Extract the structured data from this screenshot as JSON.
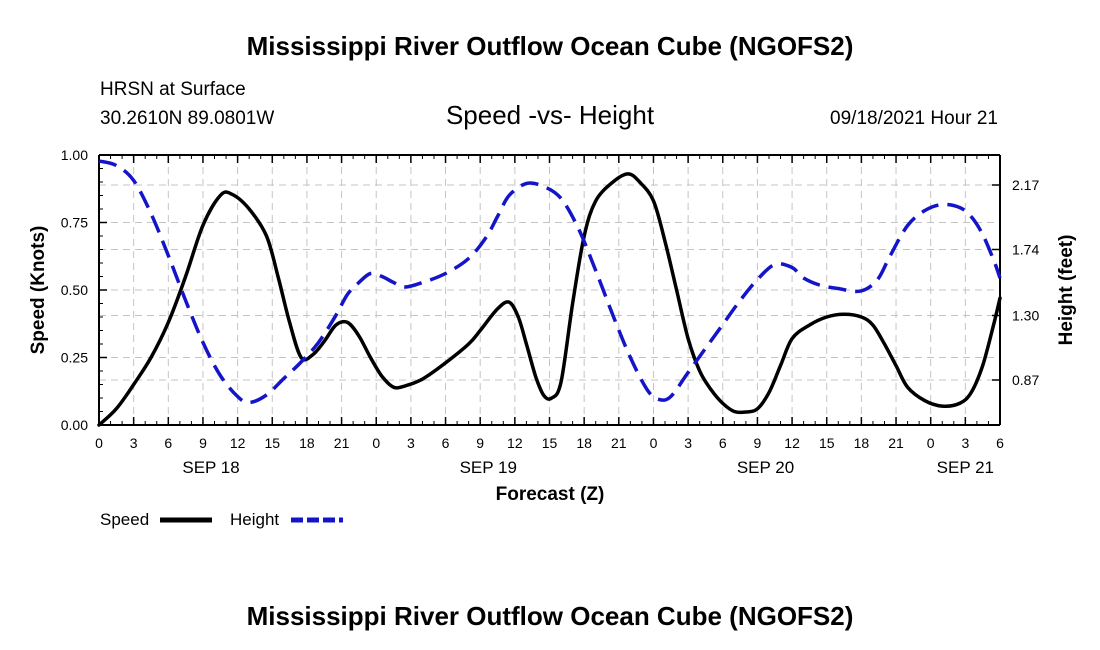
{
  "chart_data": {
    "type": "line",
    "title": "Mississippi River Outflow Ocean Cube (NGOFS2)",
    "footer_title": "Mississippi River Outflow Ocean Cube (NGOFS2)",
    "station": "HRSN at Surface",
    "location": "30.2610N  89.0801W",
    "subtitle": "Speed -vs- Height",
    "timestamp": "09/18/2021 Hour 21",
    "xlabel": "Forecast (Z)",
    "ylabel_left": "Speed (Knots)",
    "ylabel_right": "Height (feet)",
    "xlim": [
      0,
      78
    ],
    "ylim_left": [
      0,
      1.0
    ],
    "ylim_right": [
      0.57,
      2.37
    ],
    "x_tick_step": 3,
    "x_tick_labels": [
      "0",
      "3",
      "6",
      "9",
      "12",
      "15",
      "18",
      "21",
      "0",
      "3",
      "6",
      "9",
      "12",
      "15",
      "18",
      "21",
      "0",
      "3",
      "6",
      "9",
      "12",
      "15",
      "18",
      "21",
      "0",
      "3",
      "6"
    ],
    "y_left_ticks": [
      0.0,
      0.25,
      0.5,
      0.75,
      1.0
    ],
    "y_left_tick_labels": [
      "0.00",
      "0.25",
      "0.50",
      "0.75",
      "1.00"
    ],
    "y_right_ticks": [
      0.87,
      1.3,
      1.74,
      2.17
    ],
    "y_right_tick_labels": [
      "0.87",
      "1.30",
      "1.74",
      "2.17"
    ],
    "date_labels": [
      {
        "label": "SEP 18",
        "x": 9.7
      },
      {
        "label": "SEP 19",
        "x": 33.7
      },
      {
        "label": "SEP 20",
        "x": 57.7
      },
      {
        "label": "SEP 21",
        "x": 75
      }
    ],
    "grid": true,
    "legend": {
      "position": "bottom-left",
      "speed_label": "Speed",
      "height_label": "Height"
    },
    "series": [
      {
        "name": "Speed",
        "axis": "left",
        "color": "#000000",
        "style": "solid",
        "points": [
          [
            0,
            0.0
          ],
          [
            1.5,
            0.06
          ],
          [
            3,
            0.15
          ],
          [
            4.5,
            0.25
          ],
          [
            6,
            0.38
          ],
          [
            7.5,
            0.55
          ],
          [
            9,
            0.74
          ],
          [
            10.5,
            0.85
          ],
          [
            11.5,
            0.855
          ],
          [
            13,
            0.8
          ],
          [
            14.5,
            0.7
          ],
          [
            15.5,
            0.55
          ],
          [
            16.5,
            0.38
          ],
          [
            17.5,
            0.25
          ],
          [
            18.5,
            0.26
          ],
          [
            19.5,
            0.31
          ],
          [
            20.5,
            0.37
          ],
          [
            21.5,
            0.38
          ],
          [
            22.5,
            0.33
          ],
          [
            23.5,
            0.25
          ],
          [
            24.5,
            0.18
          ],
          [
            25.5,
            0.14
          ],
          [
            26.5,
            0.145
          ],
          [
            28,
            0.17
          ],
          [
            30,
            0.23
          ],
          [
            32,
            0.3
          ],
          [
            33,
            0.35
          ],
          [
            34.5,
            0.43
          ],
          [
            35.5,
            0.455
          ],
          [
            36.3,
            0.4
          ],
          [
            37,
            0.3
          ],
          [
            37.8,
            0.18
          ],
          [
            38.5,
            0.11
          ],
          [
            39.2,
            0.1
          ],
          [
            40,
            0.16
          ],
          [
            41,
            0.45
          ],
          [
            42,
            0.7
          ],
          [
            43,
            0.83
          ],
          [
            44.5,
            0.9
          ],
          [
            45.8,
            0.93
          ],
          [
            46.8,
            0.9
          ],
          [
            48,
            0.83
          ],
          [
            49,
            0.68
          ],
          [
            50,
            0.5
          ],
          [
            51,
            0.32
          ],
          [
            52,
            0.2
          ],
          [
            53,
            0.13
          ],
          [
            54,
            0.08
          ],
          [
            55,
            0.05
          ],
          [
            56,
            0.048
          ],
          [
            57,
            0.06
          ],
          [
            58,
            0.12
          ],
          [
            59,
            0.22
          ],
          [
            60,
            0.32
          ],
          [
            61.5,
            0.37
          ],
          [
            63,
            0.4
          ],
          [
            64.5,
            0.41
          ],
          [
            66,
            0.4
          ],
          [
            67,
            0.37
          ],
          [
            68,
            0.3
          ],
          [
            69,
            0.22
          ],
          [
            70,
            0.14
          ],
          [
            71.5,
            0.09
          ],
          [
            73,
            0.07
          ],
          [
            74.5,
            0.08
          ],
          [
            75.5,
            0.12
          ],
          [
            76.5,
            0.22
          ],
          [
            77.5,
            0.38
          ],
          [
            78,
            0.47
          ]
        ]
      },
      {
        "name": "Height",
        "axis": "right",
        "color": "#1414c8",
        "style": "dashed",
        "points": [
          [
            0,
            2.33
          ],
          [
            1.5,
            2.3
          ],
          [
            3,
            2.2
          ],
          [
            4.5,
            1.98
          ],
          [
            6,
            1.7
          ],
          [
            7.5,
            1.4
          ],
          [
            9,
            1.12
          ],
          [
            10.5,
            0.9
          ],
          [
            12,
            0.76
          ],
          [
            13,
            0.72
          ],
          [
            14.5,
            0.77
          ],
          [
            16,
            0.88
          ],
          [
            17.5,
            0.99
          ],
          [
            19,
            1.12
          ],
          [
            20.5,
            1.3
          ],
          [
            21.5,
            1.44
          ],
          [
            22.5,
            1.52
          ],
          [
            23.5,
            1.58
          ],
          [
            24.5,
            1.56
          ],
          [
            25.5,
            1.52
          ],
          [
            26.5,
            1.49
          ],
          [
            28,
            1.52
          ],
          [
            30,
            1.58
          ],
          [
            32,
            1.68
          ],
          [
            33.5,
            1.82
          ],
          [
            34.5,
            1.96
          ],
          [
            35.5,
            2.1
          ],
          [
            37,
            2.18
          ],
          [
            38.5,
            2.16
          ],
          [
            40,
            2.08
          ],
          [
            41.5,
            1.88
          ],
          [
            43,
            1.6
          ],
          [
            44.5,
            1.3
          ],
          [
            46,
            1.02
          ],
          [
            47.5,
            0.8
          ],
          [
            48.5,
            0.74
          ],
          [
            49.5,
            0.76
          ],
          [
            51,
            0.92
          ],
          [
            52.5,
            1.08
          ],
          [
            54,
            1.24
          ],
          [
            55.5,
            1.4
          ],
          [
            57,
            1.54
          ],
          [
            58.5,
            1.64
          ],
          [
            60,
            1.62
          ],
          [
            61,
            1.55
          ],
          [
            62.5,
            1.5
          ],
          [
            64,
            1.48
          ],
          [
            65.5,
            1.46
          ],
          [
            66.5,
            1.48
          ],
          [
            67.5,
            1.55
          ],
          [
            68.5,
            1.7
          ],
          [
            70,
            1.9
          ],
          [
            71.5,
            2.0
          ],
          [
            73,
            2.04
          ],
          [
            74.5,
            2.02
          ],
          [
            75.5,
            1.96
          ],
          [
            76.5,
            1.84
          ],
          [
            77.5,
            1.66
          ],
          [
            78,
            1.55
          ]
        ]
      }
    ]
  }
}
